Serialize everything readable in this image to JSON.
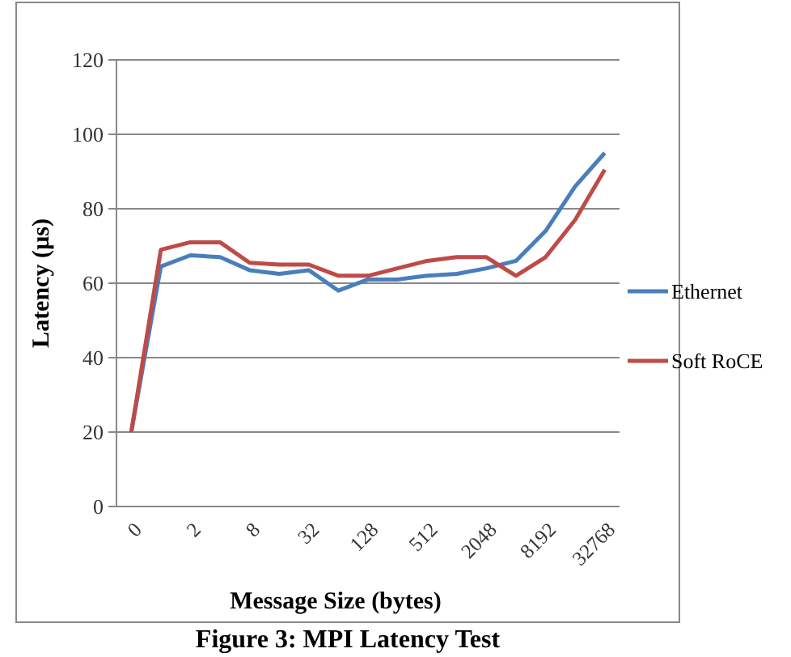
{
  "chart_data": {
    "type": "line",
    "title": "Figure 3: MPI Latency Test",
    "xlabel": "Message Size (bytes)",
    "ylabel": "Latency (µs)",
    "categories": [
      "0",
      null,
      "2",
      null,
      "8",
      null,
      "32",
      null,
      "128",
      null,
      "512",
      null,
      "2048",
      null,
      "8192",
      null,
      "32768"
    ],
    "series": [
      {
        "name": "Ethernet",
        "color": "#4a7ebb",
        "values": [
          20,
          64.5,
          67.5,
          67,
          63.5,
          62.5,
          63.5,
          58,
          61,
          61,
          62,
          62.5,
          64,
          66,
          74,
          86,
          95
        ]
      },
      {
        "name": "Soft RoCE",
        "color": "#be4b48",
        "values": [
          20,
          69,
          71,
          71,
          65.5,
          65,
          65,
          62,
          62,
          64,
          66,
          67,
          67,
          62,
          67,
          77,
          90.5
        ]
      }
    ],
    "ylim": [
      0,
      120
    ],
    "yticks": [
      0,
      20,
      40,
      60,
      80,
      100,
      120
    ],
    "grid": "y",
    "legend": "right",
    "marker": "none",
    "line_style": "solid"
  }
}
